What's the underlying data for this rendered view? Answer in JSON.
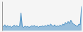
{
  "chart_data": {
    "type": "area",
    "values": [
      3.5,
      3.2,
      3.8,
      3.0,
      3.6,
      3.1,
      3.4,
      3.0,
      3.3,
      3.7,
      3.2,
      3.6,
      3.1,
      3.4,
      7.5,
      3.2,
      3.0,
      3.4,
      3.1,
      3.3,
      3.0,
      3.2,
      3.5,
      3.3,
      3.6,
      3.1,
      3.4,
      3.0,
      3.3,
      3.2,
      3.5,
      3.2,
      3.6,
      3.3,
      3.8,
      3.4,
      4.0,
      3.6,
      3.3,
      3.8,
      3.2,
      3.5,
      3.3,
      3.7,
      3.4,
      4.0,
      3.7,
      4.5,
      4.0,
      4.8,
      4.2,
      5.2,
      4.5,
      4.0,
      3.8,
      3.5,
      3.3,
      4.0,
      3.8,
      9.5
    ],
    "color": "#4a90c4",
    "ylim": [
      2.0,
      11.0
    ],
    "tick_labels": false
  }
}
